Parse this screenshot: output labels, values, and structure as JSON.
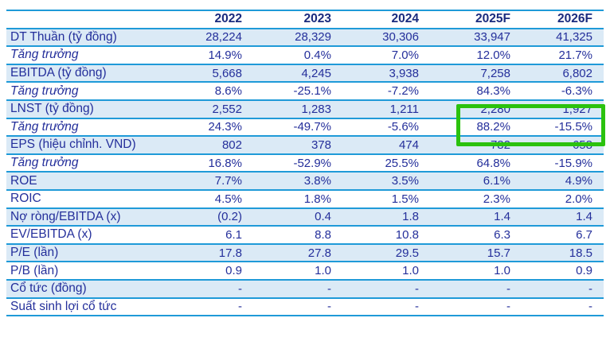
{
  "table": {
    "header": {
      "label_col": "",
      "years": [
        "2022",
        "2023",
        "2024",
        "2025F",
        "2026F"
      ]
    },
    "rows": [
      {
        "label": "DT Thuần (tỷ đồng)",
        "shaded": true,
        "italic": false,
        "values": [
          "28,224",
          "28,329",
          "30,306",
          "33,947",
          "41,325"
        ]
      },
      {
        "label": "Tăng trưởng",
        "shaded": false,
        "italic": true,
        "values": [
          "14.9%",
          "0.4%",
          "7.0%",
          "12.0%",
          "21.7%"
        ]
      },
      {
        "label": "EBITDA (tỷ đồng)",
        "shaded": true,
        "italic": false,
        "values": [
          "5,668",
          "4,245",
          "3,938",
          "7,258",
          "6,802"
        ]
      },
      {
        "label": "Tăng trưởng",
        "shaded": false,
        "italic": true,
        "values": [
          "8.6%",
          "-25.1%",
          "-7.2%",
          "84.3%",
          "-6.3%"
        ]
      },
      {
        "label": "LNST (tỷ đồng)",
        "shaded": true,
        "italic": false,
        "values": [
          "2,552",
          "1,283",
          "1,211",
          "2,280",
          "1,927"
        ]
      },
      {
        "label": "Tăng trưởng",
        "shaded": false,
        "italic": true,
        "values": [
          "24.3%",
          "-49.7%",
          "-5.6%",
          "88.2%",
          "-15.5%"
        ]
      },
      {
        "label": "EPS (hiệu chỉnh. VND)",
        "shaded": true,
        "italic": false,
        "values": [
          "802",
          "378",
          "474",
          "782",
          "658"
        ]
      },
      {
        "label": "Tăng trưởng",
        "shaded": false,
        "italic": true,
        "values": [
          "16.8%",
          "-52.9%",
          "25.5%",
          "64.8%",
          "-15.9%"
        ]
      },
      {
        "label": "ROE",
        "shaded": true,
        "italic": false,
        "values": [
          "7.7%",
          "3.8%",
          "3.5%",
          "6.1%",
          "4.9%"
        ]
      },
      {
        "label": "ROIC",
        "shaded": false,
        "italic": false,
        "values": [
          "4.5%",
          "1.8%",
          "1.5%",
          "2.3%",
          "2.0%"
        ]
      },
      {
        "label": "Nợ ròng/EBITDA (x)",
        "shaded": true,
        "italic": false,
        "values": [
          "(0.2)",
          "0.4",
          "1.8",
          "1.4",
          "1.4"
        ]
      },
      {
        "label": "EV/EBITDA (x)",
        "shaded": false,
        "italic": false,
        "values": [
          "6.1",
          "8.8",
          "10.8",
          "6.3",
          "6.7"
        ]
      },
      {
        "label": "P/E (lần)",
        "shaded": true,
        "italic": false,
        "values": [
          "17.8",
          "27.8",
          "29.5",
          "15.7",
          "18.5"
        ]
      },
      {
        "label": "P/B (lần)",
        "shaded": false,
        "italic": false,
        "values": [
          "0.9",
          "1.0",
          "1.0",
          "1.0",
          "0.9"
        ]
      },
      {
        "label": "Cổ tức (đồng)",
        "shaded": true,
        "italic": false,
        "values": [
          "-",
          "-",
          "-",
          "-",
          "-"
        ]
      },
      {
        "label": "Suất sinh lợi cổ tức",
        "shaded": false,
        "italic": false,
        "values": [
          "-",
          "-",
          "-",
          "-",
          "-"
        ]
      }
    ]
  },
  "highlight": {
    "highlighted_values": [
      "2,280",
      "1,927",
      "88.2%",
      "-15.5%"
    ],
    "columns": [
      "2025F",
      "2026F"
    ]
  },
  "colors": {
    "grid_line": "#1f9ad8",
    "row_shade": "#dbeaf6",
    "body_text": "#242f9b",
    "header_text": "#1a2b7e",
    "highlight_green": "#2bc20e"
  }
}
